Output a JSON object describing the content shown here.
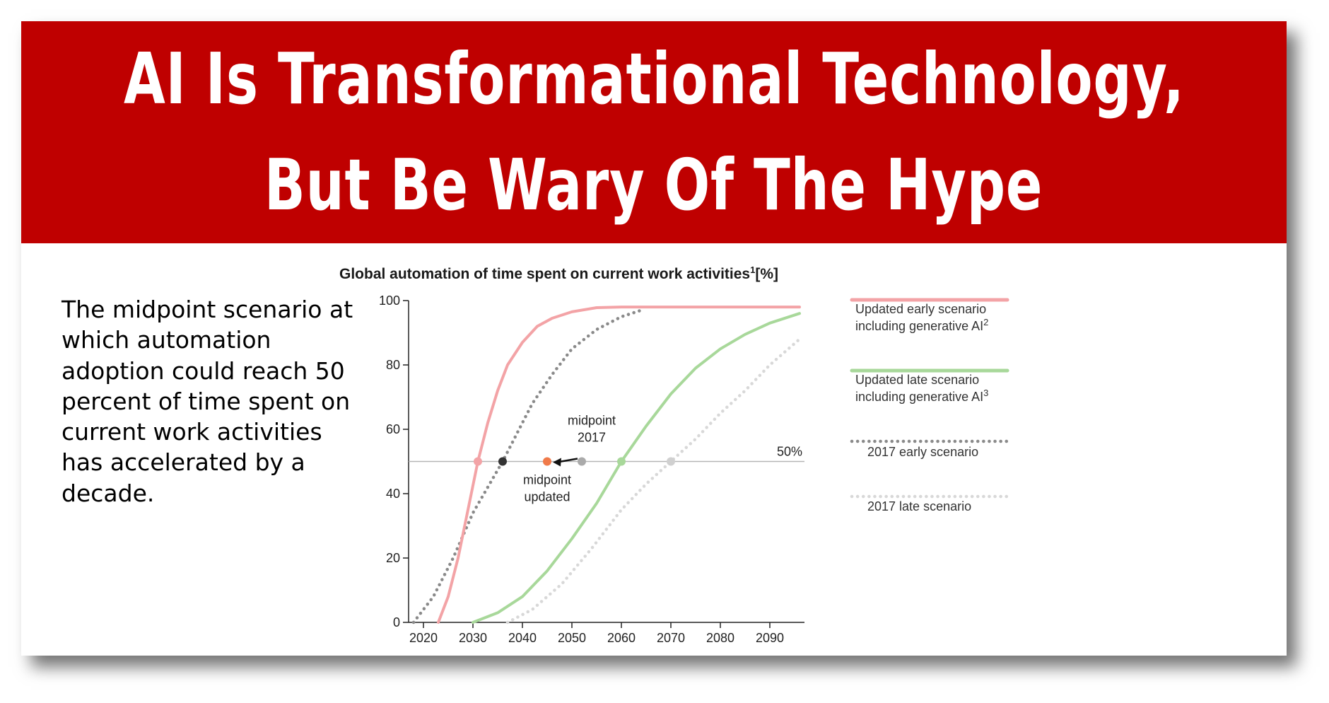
{
  "banner": {
    "title_line1": "AI Is Transformational Technology,",
    "title_line2": "But Be Wary Of The Hype",
    "color": "#bf0000"
  },
  "body_text": "The midpoint scenario at which automation adoption could reach 50 percent of time spent on current work activities has accelerated by a decade.",
  "chart_data": {
    "type": "line",
    "title": "Global automation of time spent on current work activities",
    "title_sup": "1",
    "title_suffix": "[%]",
    "xlim": [
      2017,
      2097
    ],
    "ylim": [
      0,
      100
    ],
    "xticks": [
      2020,
      2030,
      2040,
      2050,
      2060,
      2070,
      2080,
      2090
    ],
    "yticks": [
      0,
      20,
      40,
      60,
      80,
      100
    ],
    "grid": false,
    "reference_line": {
      "y": 50,
      "label": "50%"
    },
    "series": [
      {
        "name": "Updated early scenario including generative AI",
        "legend_line1": "Updated early scenario",
        "legend_line2": "including generative AI",
        "legend_sup": "2",
        "style": "solid",
        "color": "#f3a3a6",
        "x": [
          2023,
          2025,
          2027,
          2029,
          2031,
          2033,
          2035,
          2037,
          2040,
          2043,
          2046,
          2050,
          2055,
          2060,
          2070,
          2080,
          2096
        ],
        "y": [
          0,
          8,
          20,
          35,
          50,
          62,
          72,
          80,
          87,
          92,
          94.5,
          96.5,
          97.8,
          98,
          98,
          98,
          98
        ]
      },
      {
        "name": "Updated late scenario including generative AI",
        "legend_line1": "Updated late scenario",
        "legend_line2": "including generative AI",
        "legend_sup": "3",
        "style": "solid",
        "color": "#a8d89a",
        "x": [
          2030,
          2035,
          2040,
          2045,
          2050,
          2055,
          2060,
          2065,
          2070,
          2075,
          2080,
          2085,
          2090,
          2096
        ],
        "y": [
          0,
          3,
          8,
          16,
          26,
          37,
          50,
          61,
          71,
          79,
          85,
          89.5,
          93,
          96
        ]
      },
      {
        "name": "2017 early scenario",
        "legend_line1": "2017 early scenario",
        "style": "dotted",
        "color": "#8a8a8a",
        "x": [
          2018,
          2022,
          2026,
          2030,
          2033,
          2036,
          2039,
          2042,
          2046,
          2050,
          2055,
          2060,
          2064
        ],
        "y": [
          0,
          8,
          20,
          34,
          42,
          50,
          59,
          68,
          77,
          85,
          91,
          95,
          97
        ]
      },
      {
        "name": "2017 late scenario",
        "legend_line1": "2017 late scenario",
        "style": "dotted",
        "color": "#d8d8d8",
        "x": [
          2037,
          2042,
          2048,
          2054,
          2060,
          2065,
          2070,
          2075,
          2080,
          2085,
          2090,
          2096
        ],
        "y": [
          0,
          4,
          12,
          23,
          35,
          43,
          50,
          57,
          65,
          72,
          80,
          88
        ]
      }
    ],
    "markers": [
      {
        "label_line1": "midpoint",
        "label_line2": "2017",
        "x": 2052,
        "y": 50,
        "color": "#aaaaaa"
      },
      {
        "label_line1": "midpoint",
        "label_line2": "updated",
        "x": 2045,
        "y": 50,
        "color": "#f07a4a"
      }
    ]
  }
}
